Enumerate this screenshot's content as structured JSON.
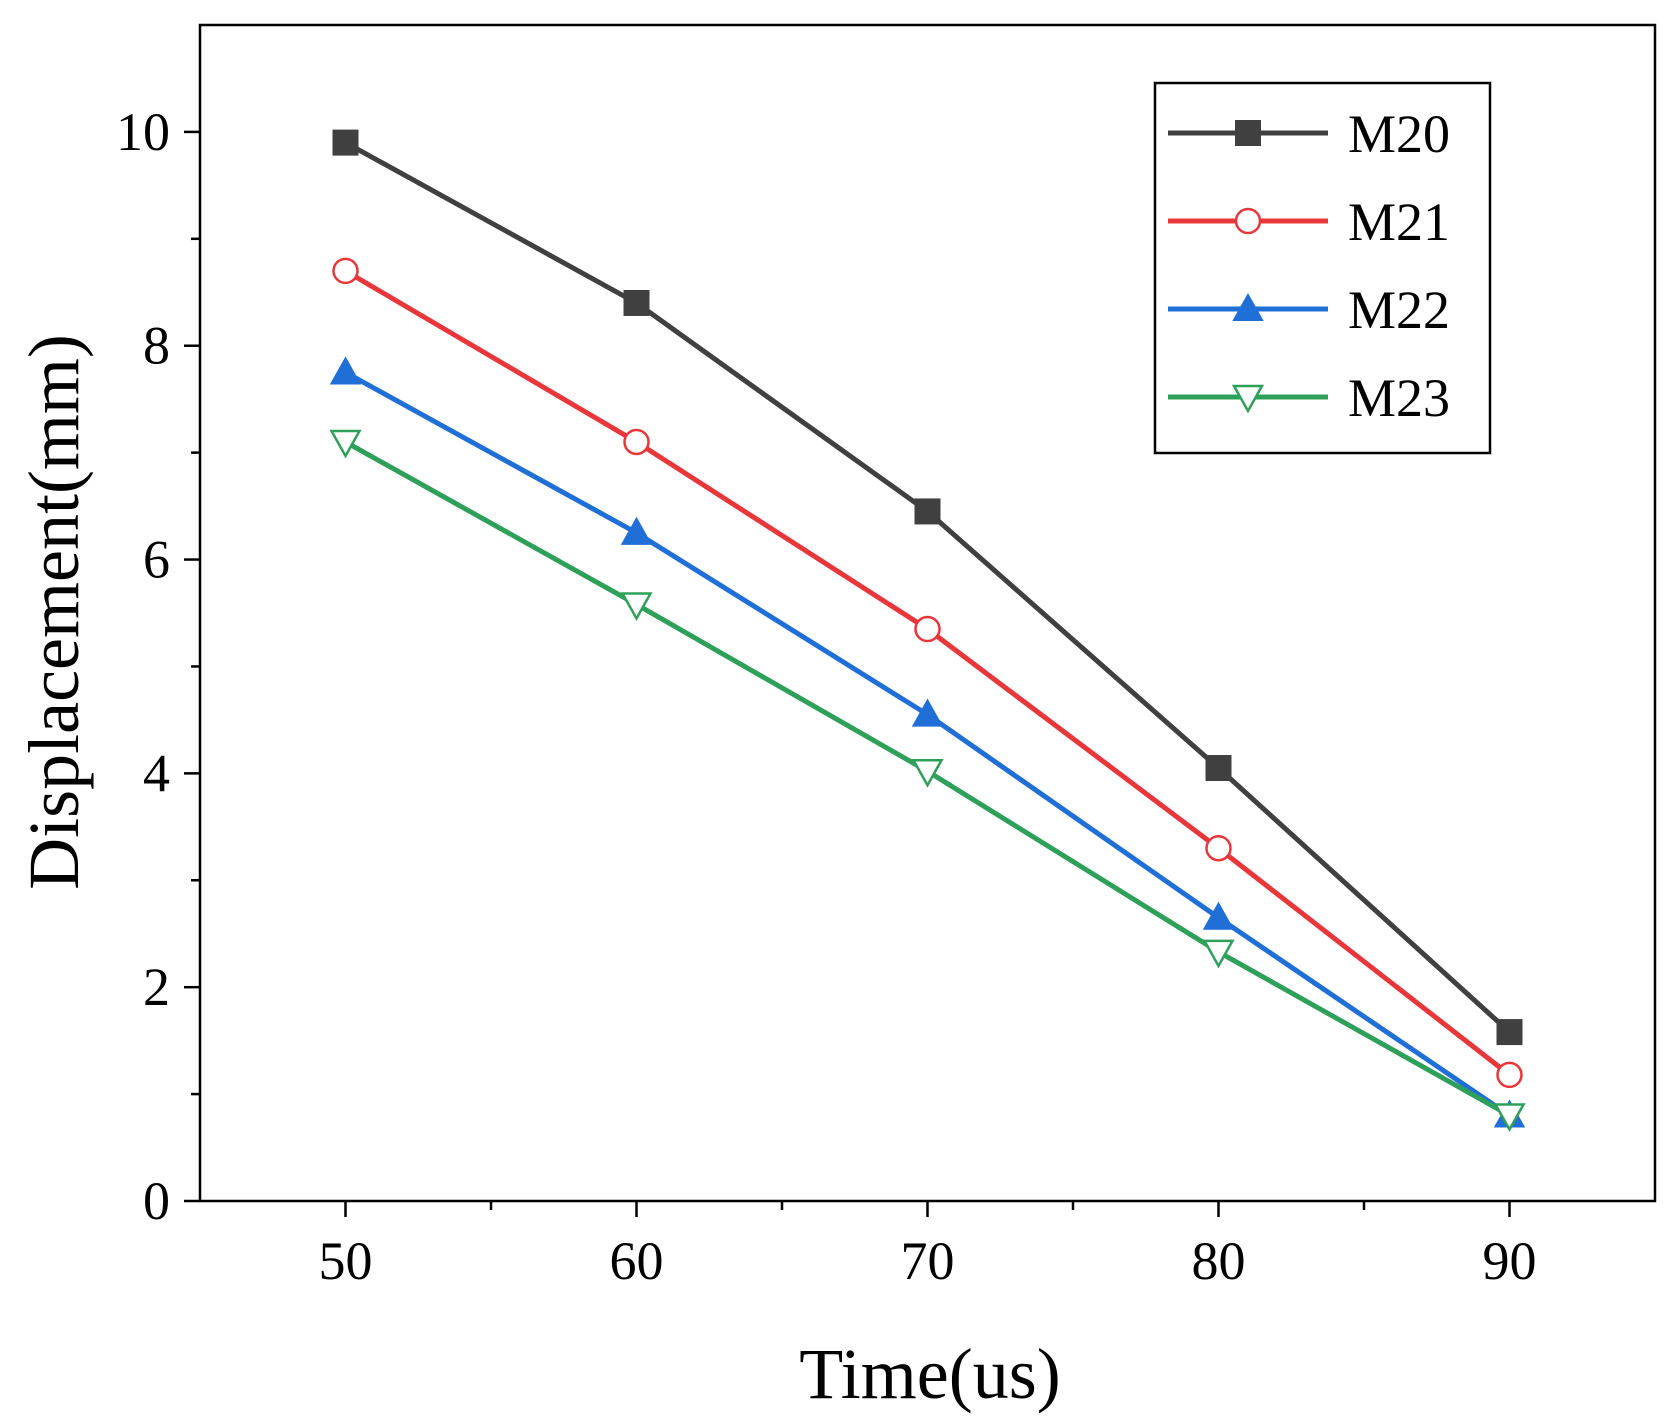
{
  "chart_data": {
    "type": "line",
    "title": "",
    "xlabel": "Time(us)",
    "ylabel": "Displacement(mm)",
    "xlim": [
      45,
      95
    ],
    "ylim": [
      0,
      11
    ],
    "xticks": [
      50,
      60,
      70,
      80,
      90
    ],
    "yticks": [
      0,
      2,
      4,
      6,
      8,
      10
    ],
    "x": [
      50,
      60,
      70,
      80,
      90
    ],
    "legend_position": "top-right",
    "series": [
      {
        "name": "M20",
        "color": "#404040",
        "marker": "square-filled",
        "values": [
          9.9,
          8.4,
          6.45,
          4.05,
          1.58
        ]
      },
      {
        "name": "M21",
        "color": "#e8373a",
        "marker": "circle-open",
        "values": [
          8.7,
          7.1,
          5.35,
          3.3,
          1.18
        ]
      },
      {
        "name": "M22",
        "color": "#1f6fd6",
        "marker": "triangle-up-filled",
        "values": [
          7.75,
          6.25,
          4.55,
          2.65,
          0.8
        ]
      },
      {
        "name": "M23",
        "color": "#2ea05a",
        "marker": "triangle-down-open",
        "values": [
          7.1,
          5.58,
          4.02,
          2.33,
          0.8
        ]
      }
    ]
  }
}
